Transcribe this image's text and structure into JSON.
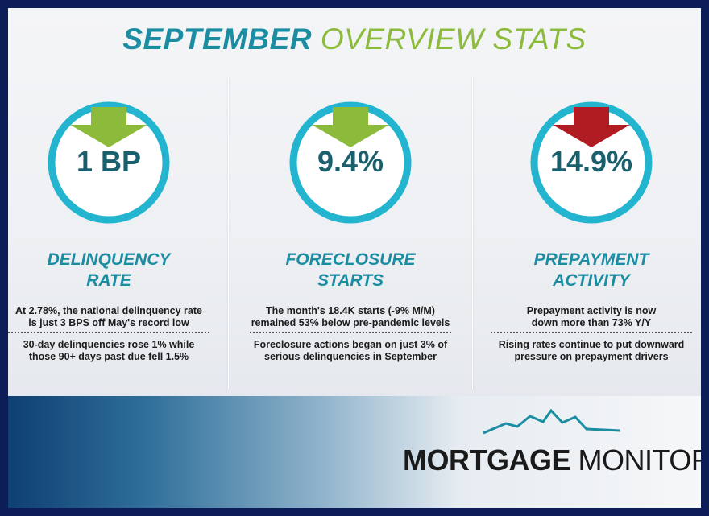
{
  "header": {
    "title_part1": "SEPTEMBER",
    "title_part2": "OVERVIEW STATS"
  },
  "cards": [
    {
      "value": "1 BP",
      "label": [
        "DELINQUENCY",
        "RATE"
      ],
      "notes": [
        [
          "At 2.78%, the national delinquency rate",
          "is just 3 BPS off May's record low"
        ],
        [
          "30-day delinquencies rose 1% while",
          "those 90+ days past due fell 1.5%"
        ]
      ]
    },
    {
      "value": "9.4%",
      "label": [
        "FORECLOSURE",
        "STARTS"
      ],
      "notes": [
        [
          "The month's 18.4K starts (-9% M/M)",
          "remained 53% below pre-pandemic levels"
        ],
        [
          "Foreclosure actions began on just 3% of",
          "serious delinquencies in September"
        ]
      ]
    },
    {
      "value": "14.9%",
      "label": [
        "PREPAYMENT",
        "ACTIVITY"
      ],
      "notes": [
        [
          "Prepayment activity is now",
          "down more than 73% Y/Y"
        ],
        [
          "Rising rates continue to put downward",
          "pressure on prepayment drivers"
        ]
      ]
    }
  ],
  "logo": {
    "part1": "MORTGAGE",
    "part2": "MONITOR"
  }
}
